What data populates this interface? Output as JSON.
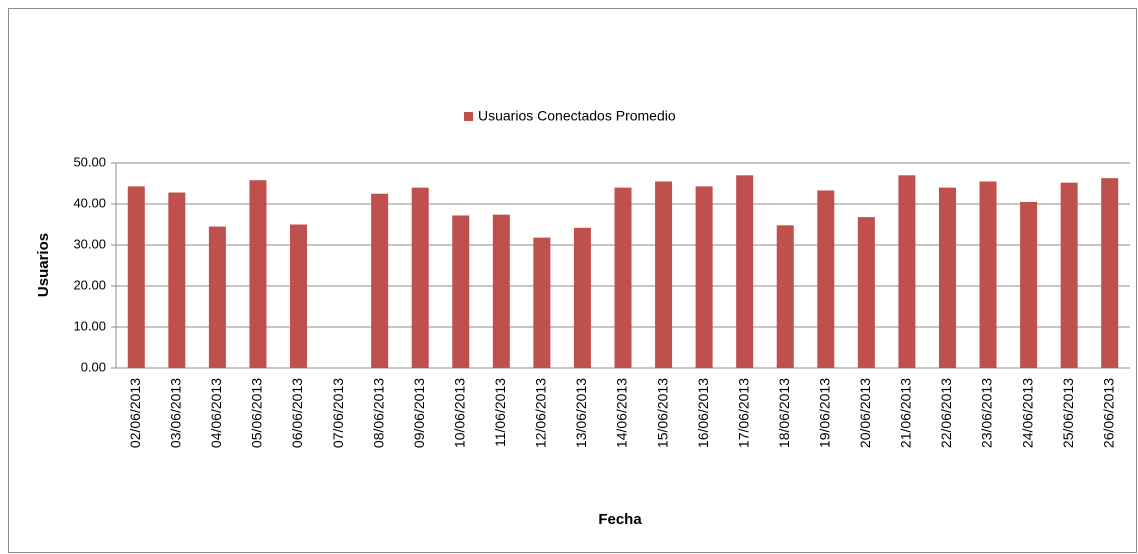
{
  "chart_data": {
    "type": "bar",
    "categories": [
      "02/06/2013",
      "03/06/2013",
      "04/06/2013",
      "05/06/2013",
      "06/06/2013",
      "07/06/2013",
      "08/06/2013",
      "09/06/2013",
      "10/06/2013",
      "11/06/2013",
      "12/06/2013",
      "13/06/2013",
      "14/06/2013",
      "15/06/2013",
      "16/06/2013",
      "17/06/2013",
      "18/06/2013",
      "19/06/2013",
      "20/06/2013",
      "21/06/2013",
      "22/06/2013",
      "23/06/2013",
      "24/06/2013",
      "25/06/2013",
      "26/06/2013"
    ],
    "series": [
      {
        "name": "Usuarios Conectados Promedio",
        "color": "#c0504d",
        "values": [
          44.3,
          42.8,
          34.5,
          45.8,
          35.0,
          null,
          42.5,
          44.0,
          37.2,
          37.4,
          31.8,
          34.2,
          44.0,
          45.5,
          44.3,
          47.0,
          34.8,
          43.3,
          36.8,
          47.0,
          44.0,
          45.5,
          40.5,
          45.2,
          46.3
        ]
      }
    ],
    "x_label": "Fecha",
    "y_label": "Usuarios",
    "ylim": [
      0,
      50
    ],
    "yticks": [
      {
        "value": 0,
        "label": "0.00"
      },
      {
        "value": 10,
        "label": "10.00"
      },
      {
        "value": 20,
        "label": "20.00"
      },
      {
        "value": 30,
        "label": "30.00"
      },
      {
        "value": 40,
        "label": "40.00"
      },
      {
        "value": 50,
        "label": "50.00"
      }
    ],
    "grid": true,
    "legend": "top"
  }
}
